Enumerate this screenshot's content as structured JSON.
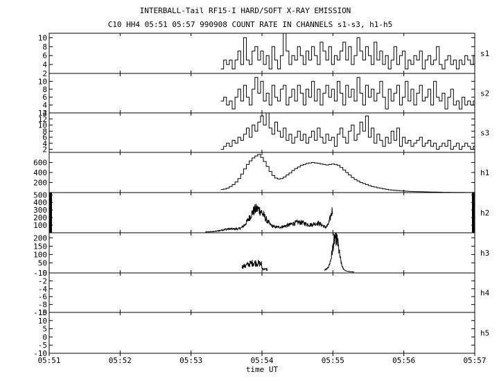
{
  "title_line1": "INTERBALL-Tail RF15-I HARD/SOFT X-RAY EMISSION",
  "title_line2": "C10 HH4 05:51 05:57 990908  COUNT RATE IN CHANNELS s1-s3, h1-h5",
  "chart_data": {
    "type": "line",
    "xlabel": "time UT",
    "x_ticks": [
      "05:51",
      "05:52",
      "05:53",
      "05:54",
      "05:55",
      "05:56",
      "05:57"
    ],
    "xlim_minutes": [
      0,
      6
    ],
    "panels": [
      {
        "name": "s1",
        "ylim": [
          2,
          11
        ],
        "yticks": [
          "2",
          "4",
          "6",
          "8",
          "10"
        ],
        "style": "step",
        "x": [
          2.42,
          2.46,
          2.5,
          2.54,
          2.58,
          2.62,
          2.66,
          2.7,
          2.74,
          2.78,
          2.82,
          2.86,
          2.9,
          2.94,
          2.98,
          3.02,
          3.06,
          3.1,
          3.14,
          3.18,
          3.22,
          3.26,
          3.3,
          3.34,
          3.38,
          3.42,
          3.46,
          3.5,
          3.54,
          3.58,
          3.62,
          3.66,
          3.7,
          3.74,
          3.78,
          3.82,
          3.86,
          3.9,
          3.94,
          3.98,
          4.02,
          4.06,
          4.1,
          4.14,
          4.18,
          4.22,
          4.26,
          4.3,
          4.34,
          4.38,
          4.42,
          4.46,
          4.5,
          4.54,
          4.58,
          4.62,
          4.66,
          4.7,
          4.74,
          4.78,
          4.82,
          4.86,
          4.9,
          4.94,
          4.98,
          5.02,
          5.06,
          5.1,
          5.14,
          5.18,
          5.22,
          5.26,
          5.3,
          5.34,
          5.38,
          5.42,
          5.46,
          5.5,
          5.54,
          5.58,
          5.62,
          5.66,
          5.7,
          5.74,
          5.78,
          5.82,
          5.86,
          5.9,
          5.94,
          5.98
        ],
        "values": [
          3,
          5,
          4,
          5,
          3,
          5,
          7,
          4,
          10,
          5,
          4,
          7,
          8,
          5,
          7,
          4,
          6,
          3,
          8,
          5,
          3,
          6,
          11,
          7,
          4,
          6,
          5,
          8,
          6,
          4,
          7,
          5,
          8,
          6,
          4,
          9,
          7,
          5,
          8,
          4,
          6,
          5,
          7,
          9,
          5,
          8,
          4,
          6,
          10,
          7,
          5,
          8,
          6,
          4,
          9,
          5,
          7,
          4,
          6,
          3,
          5,
          8,
          4,
          6,
          7,
          3,
          5,
          4,
          6,
          5,
          7,
          3,
          5,
          6,
          4,
          5,
          8,
          4,
          3,
          5,
          6,
          4,
          5,
          3,
          5,
          4,
          6,
          5,
          4,
          6
        ]
      },
      {
        "name": "s2",
        "ylim": [
          2,
          12
        ],
        "yticks": [
          "2",
          "4",
          "6",
          "8",
          "10"
        ],
        "style": "step",
        "x": [
          2.42,
          2.46,
          2.5,
          2.54,
          2.58,
          2.62,
          2.66,
          2.7,
          2.74,
          2.78,
          2.82,
          2.86,
          2.9,
          2.94,
          2.98,
          3.02,
          3.06,
          3.1,
          3.14,
          3.18,
          3.22,
          3.26,
          3.3,
          3.34,
          3.38,
          3.42,
          3.46,
          3.5,
          3.54,
          3.58,
          3.62,
          3.66,
          3.7,
          3.74,
          3.78,
          3.82,
          3.86,
          3.9,
          3.94,
          3.98,
          4.02,
          4.06,
          4.1,
          4.14,
          4.18,
          4.22,
          4.26,
          4.3,
          4.34,
          4.38,
          4.42,
          4.46,
          4.5,
          4.54,
          4.58,
          4.62,
          4.66,
          4.7,
          4.74,
          4.78,
          4.82,
          4.86,
          4.9,
          4.94,
          4.98,
          5.02,
          5.06,
          5.1,
          5.14,
          5.18,
          5.22,
          5.26,
          5.3,
          5.34,
          5.38,
          5.42,
          5.46,
          5.5,
          5.54,
          5.58,
          5.62,
          5.66,
          5.7,
          5.74,
          5.78,
          5.82,
          5.86,
          5.9,
          5.94,
          5.98
        ],
        "values": [
          5,
          6,
          4,
          5,
          3,
          6,
          8,
          5,
          9,
          6,
          4,
          8,
          11,
          7,
          10,
          5,
          7,
          4,
          9,
          6,
          5,
          8,
          9,
          4,
          6,
          8,
          5,
          9,
          7,
          4,
          8,
          6,
          10,
          5,
          8,
          4,
          7,
          9,
          6,
          8,
          5,
          10,
          7,
          4,
          9,
          6,
          8,
          5,
          11,
          7,
          4,
          9,
          6,
          8,
          5,
          7,
          10,
          6,
          3,
          8,
          5,
          7,
          9,
          4,
          6,
          10,
          5,
          8,
          4,
          7,
          9,
          5,
          6,
          8,
          4,
          10,
          6,
          5,
          7,
          3,
          6,
          8,
          4,
          5,
          3,
          6,
          4,
          5,
          4,
          5
        ]
      },
      {
        "name": "s3",
        "ylim": [
          1,
          14
        ],
        "yticks": [
          "2",
          "4",
          "6",
          "8",
          "10",
          "12",
          "14"
        ],
        "style": "step",
        "x": [
          2.42,
          2.46,
          2.5,
          2.54,
          2.58,
          2.62,
          2.66,
          2.7,
          2.74,
          2.78,
          2.82,
          2.86,
          2.9,
          2.94,
          2.98,
          3.02,
          3.06,
          3.1,
          3.14,
          3.18,
          3.22,
          3.26,
          3.3,
          3.34,
          3.38,
          3.42,
          3.46,
          3.5,
          3.54,
          3.58,
          3.62,
          3.66,
          3.7,
          3.74,
          3.78,
          3.82,
          3.86,
          3.9,
          3.94,
          3.98,
          4.02,
          4.06,
          4.1,
          4.14,
          4.18,
          4.22,
          4.26,
          4.3,
          4.34,
          4.38,
          4.42,
          4.46,
          4.5,
          4.54,
          4.58,
          4.62,
          4.66,
          4.7,
          4.74,
          4.78,
          4.82,
          4.86,
          4.9,
          4.94,
          4.98,
          5.02,
          5.06,
          5.1,
          5.14,
          5.18,
          5.22,
          5.26,
          5.3,
          5.34,
          5.38,
          5.42,
          5.46,
          5.5,
          5.54,
          5.58,
          5.62,
          5.66,
          5.7,
          5.74,
          5.78,
          5.82,
          5.86,
          5.9,
          5.94,
          5.98
        ],
        "values": [
          2,
          3,
          4,
          3,
          5,
          4,
          6,
          5,
          7,
          9,
          6,
          10,
          8,
          11,
          13,
          10,
          14,
          9,
          7,
          11,
          8,
          6,
          9,
          5,
          7,
          4,
          6,
          8,
          5,
          7,
          4,
          6,
          8,
          5,
          9,
          6,
          4,
          7,
          5,
          6,
          3,
          7,
          9,
          6,
          4,
          8,
          10,
          5,
          7,
          11,
          8,
          13,
          6,
          9,
          4,
          7,
          5,
          3,
          6,
          4,
          8,
          5,
          9,
          3,
          6,
          4,
          5,
          3,
          4,
          5,
          6,
          3,
          4,
          5,
          3,
          4,
          2,
          3,
          4,
          3,
          5,
          2,
          3,
          4,
          2,
          3,
          4,
          3,
          2,
          3
        ]
      },
      {
        "name": "h1",
        "ylim": [
          0,
          800
        ],
        "yticks": [
          "200",
          "400",
          "600"
        ],
        "style": "step",
        "x": [
          2.42,
          2.46,
          2.5,
          2.54,
          2.58,
          2.62,
          2.66,
          2.7,
          2.74,
          2.78,
          2.82,
          2.86,
          2.9,
          2.94,
          2.98,
          3.02,
          3.06,
          3.1,
          3.14,
          3.18,
          3.22,
          3.26,
          3.3,
          3.34,
          3.38,
          3.42,
          3.46,
          3.5,
          3.54,
          3.58,
          3.62,
          3.66,
          3.7,
          3.74,
          3.78,
          3.82,
          3.86,
          3.9,
          3.94,
          3.98,
          4.02,
          4.06,
          4.1,
          4.14,
          4.18,
          4.22,
          4.26,
          4.3,
          4.34,
          4.38,
          4.42,
          4.46,
          4.5,
          4.54,
          4.58,
          4.62,
          4.66,
          4.7,
          4.74,
          4.78,
          4.82,
          4.86,
          4.9,
          4.94,
          4.98,
          5.02,
          5.06,
          5.1,
          5.14,
          5.18,
          5.22,
          5.26,
          5.3,
          5.34,
          5.38,
          5.42,
          5.46,
          5.5,
          5.54,
          5.58,
          5.62,
          5.66,
          5.7,
          5.74,
          5.78,
          5.82,
          5.86,
          5.9,
          5.94,
          5.98
        ],
        "values": [
          60,
          70,
          90,
          120,
          160,
          210,
          280,
          370,
          470,
          560,
          630,
          690,
          730,
          760,
          700,
          620,
          520,
          420,
          340,
          290,
          270,
          280,
          310,
          350,
          390,
          440,
          480,
          510,
          540,
          560,
          580,
          590,
          600,
          590,
          580,
          570,
          560,
          550,
          560,
          570,
          560,
          540,
          500,
          450,
          400,
          350,
          300,
          260,
          230,
          200,
          180,
          160,
          140,
          120,
          110,
          95,
          85,
          75,
          65,
          55,
          50,
          45,
          40,
          35,
          30,
          28,
          25,
          22,
          20,
          18,
          16,
          15,
          14,
          12,
          10,
          10,
          8,
          8,
          6,
          6,
          5,
          4,
          4,
          3,
          3,
          3,
          2,
          2,
          2,
          2
        ]
      },
      {
        "name": "h2",
        "ylim": [
          0,
          530
        ],
        "yticks": [
          "100",
          "200",
          "300",
          "400",
          "500"
        ],
        "style": "noisy"
      },
      {
        "name": "h3",
        "ylim": [
          -10,
          230
        ],
        "yticks": [
          "-10",
          "50",
          "100",
          "150",
          "200"
        ],
        "style": "noisy"
      },
      {
        "name": "h4",
        "ylim": [
          -10,
          0
        ],
        "yticks": [
          "-10",
          "-8",
          "-6",
          "-4",
          "-2",
          "0"
        ],
        "style": "empty"
      },
      {
        "name": "h5",
        "ylim": [
          -10,
          15
        ],
        "yticks": [
          "-10",
          "-5",
          "0",
          "5",
          "10",
          "15"
        ],
        "style": "empty"
      }
    ]
  }
}
